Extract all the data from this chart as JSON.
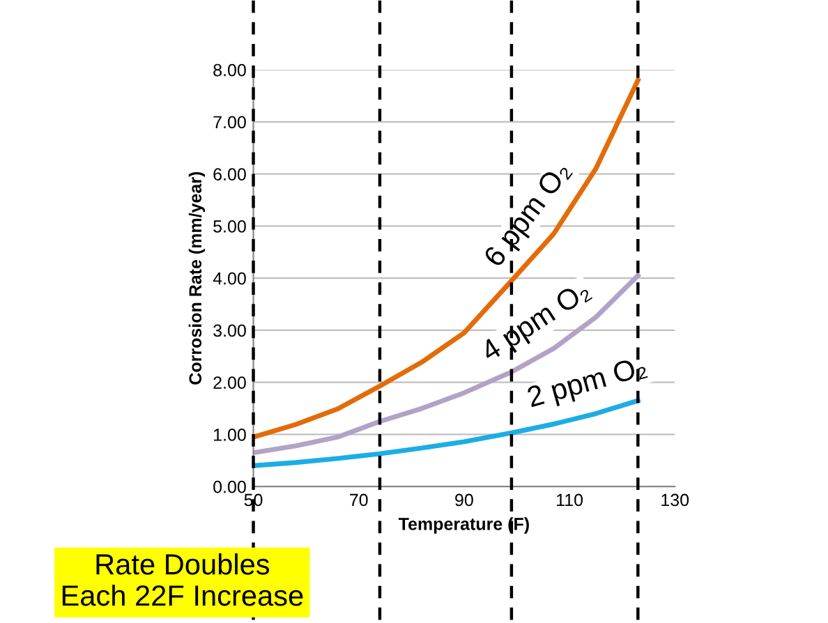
{
  "chart_data": {
    "type": "line",
    "xlabel": "Temperature (F)",
    "ylabel": "Corrosion Rate (mm/year)",
    "series": [
      {
        "name": "6 ppm O₂",
        "color": "#e36c0a",
        "x": [
          50,
          58,
          66,
          74,
          82,
          90,
          99,
          107,
          115,
          123
        ],
        "values": [
          0.95,
          1.19,
          1.49,
          1.93,
          2.39,
          2.95,
          3.95,
          4.85,
          6.1,
          7.8
        ]
      },
      {
        "name": "4 ppm O₂",
        "color": "#b3a2c7",
        "x": [
          50,
          58,
          66,
          74,
          82,
          90,
          99,
          107,
          115,
          123
        ],
        "values": [
          0.65,
          0.78,
          0.95,
          1.25,
          1.5,
          1.8,
          2.2,
          2.65,
          3.25,
          4.05
        ]
      },
      {
        "name": "2 ppm O₂",
        "color": "#1cade4",
        "x": [
          50,
          58,
          66,
          74,
          82,
          90,
          99,
          107,
          115,
          123
        ],
        "values": [
          0.4,
          0.46,
          0.54,
          0.63,
          0.74,
          0.86,
          1.03,
          1.2,
          1.4,
          1.65
        ]
      }
    ],
    "xlim": [
      50,
      130
    ],
    "xticks": [
      50,
      70,
      90,
      110,
      130
    ],
    "ylim": [
      0,
      8
    ],
    "yticks": [
      {
        "value": 0,
        "label": "0.00"
      },
      {
        "value": 1,
        "label": "1.00"
      },
      {
        "value": 2,
        "label": "2.00"
      },
      {
        "value": 3,
        "label": "3.00"
      },
      {
        "value": 4,
        "label": "4.00"
      },
      {
        "value": 5,
        "label": "5.00"
      },
      {
        "value": 6,
        "label": "6.00"
      },
      {
        "value": 7,
        "label": "7.00"
      },
      {
        "value": 8,
        "label": "8.00"
      }
    ],
    "grid": "y",
    "legend": false,
    "marker": "none",
    "line_style": "solid",
    "ref_lines": [
      {
        "axis": "x",
        "value": 50,
        "color": "#000000",
        "line_style": "dashed"
      },
      {
        "axis": "x",
        "value": 74,
        "color": "#000000",
        "line_style": "dashed"
      },
      {
        "axis": "x",
        "value": 99,
        "color": "#000000",
        "line_style": "dashed"
      },
      {
        "axis": "x",
        "value": 123,
        "color": "#000000",
        "line_style": "dashed"
      }
    ],
    "annotations": [
      "Rate Doubles\nEach 22F Increase"
    ]
  }
}
